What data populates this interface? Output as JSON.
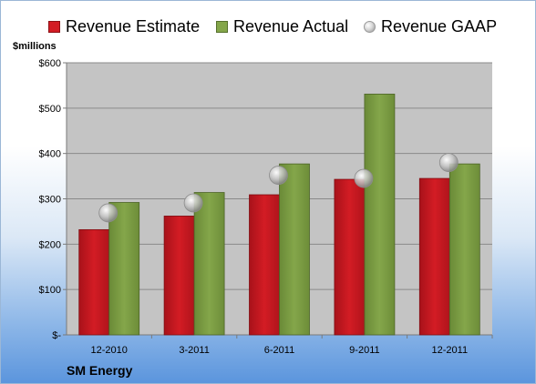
{
  "legend": {
    "estimate": "Revenue Estimate",
    "actual": "Revenue Actual",
    "gaap": "Revenue GAAP"
  },
  "unit_label": "$millions",
  "company": "SM Energy",
  "colors": {
    "estimate": "#d31c24",
    "actual": "#84a64a",
    "gaap": "#c8c8c8",
    "plot_bg": "#c4c4c4"
  },
  "chart_data": {
    "type": "bar",
    "categories": [
      "12-2010",
      "3-2011",
      "6-2011",
      "9-2011",
      "12-2011"
    ],
    "series": [
      {
        "name": "Revenue Estimate",
        "values": [
          232,
          262,
          309,
          343,
          345
        ]
      },
      {
        "name": "Revenue Actual",
        "values": [
          292,
          314,
          377,
          531,
          377
        ]
      },
      {
        "name": "Revenue GAAP",
        "values": [
          269,
          291,
          352,
          345,
          380
        ]
      }
    ],
    "yticks": [
      0,
      100,
      200,
      300,
      400,
      500,
      600
    ],
    "ytick_labels": [
      "$-",
      "$100",
      "$200",
      "$300",
      "$400",
      "$500",
      "$600"
    ],
    "ylim": [
      0,
      600
    ],
    "grid": true,
    "legend_position": "top",
    "ylabel": "$millions",
    "xlabel": ""
  }
}
